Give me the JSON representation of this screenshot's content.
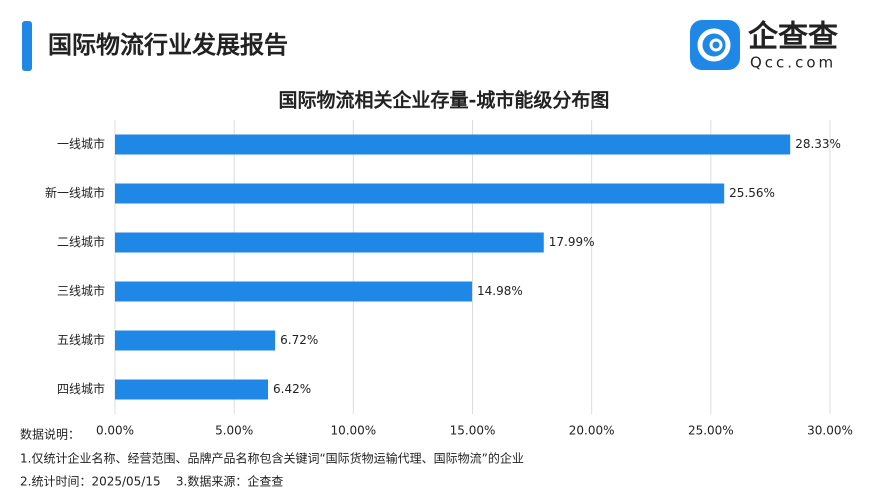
{
  "header": {
    "title": "国际物流行业发展报告",
    "logo": "企查查",
    "logo_sub": "Qcc.com"
  },
  "chart_data": {
    "type": "bar",
    "orientation": "horizontal",
    "title": "国际物流相关企业存量-城市能级分布图",
    "categories": [
      "一线城市",
      "新一线城市",
      "二线城市",
      "三线城市",
      "五线城市",
      "四线城市"
    ],
    "values": [
      28.33,
      25.56,
      17.99,
      14.98,
      6.72,
      6.42
    ],
    "value_labels": [
      "28.33%",
      "25.56%",
      "17.99%",
      "14.98%",
      "6.72%",
      "6.42%"
    ],
    "color": "#1f88e6",
    "xlim": [
      0,
      30
    ],
    "xticks": [
      {
        "value": 0,
        "label": "0.00%"
      },
      {
        "value": 5,
        "label": "5.00%"
      },
      {
        "value": 10,
        "label": "10.00%"
      },
      {
        "value": 15,
        "label": "15.00%"
      },
      {
        "value": 20,
        "label": "20.00%"
      },
      {
        "value": 25,
        "label": "25.00%"
      },
      {
        "value": 30,
        "label": "30.00%"
      }
    ],
    "grid": true
  },
  "notes": {
    "heading": "数据说明：",
    "lines": [
      "1.仅统计企业名称、经营范围、品牌产品名称包含关键词“国际货物运输代理、国际物流”的企业",
      "2.统计时间：2025/05/15    3.数据来源：企查查"
    ]
  }
}
